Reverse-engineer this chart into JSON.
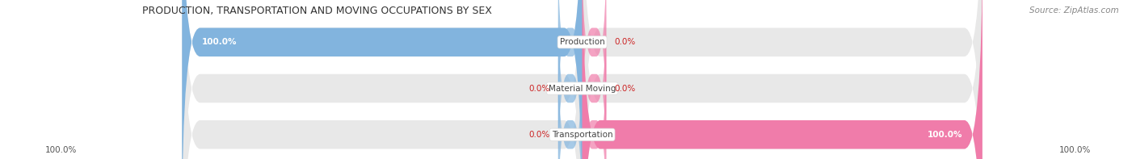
{
  "title": "PRODUCTION, TRANSPORTATION AND MOVING OCCUPATIONS BY SEX",
  "source": "Source: ZipAtlas.com",
  "categories": [
    "Production",
    "Material Moving",
    "Transportation"
  ],
  "male_values": [
    100.0,
    0.0,
    0.0
  ],
  "female_values": [
    0.0,
    0.0,
    100.0
  ],
  "male_color": "#82b4de",
  "female_color": "#f07caa",
  "bar_bg_color": "#e8e8e8",
  "bar_height": 0.62,
  "figsize": [
    14.06,
    1.97
  ],
  "dpi": 100,
  "x_left_label": "100.0%",
  "x_right_label": "100.0%",
  "pct_color": "#cc2222",
  "title_fontsize": 9,
  "source_fontsize": 7.5,
  "tick_fontsize": 7.5,
  "cat_fontsize": 7.5,
  "pct_fontsize": 7.5,
  "bg_color": "#ffffff"
}
